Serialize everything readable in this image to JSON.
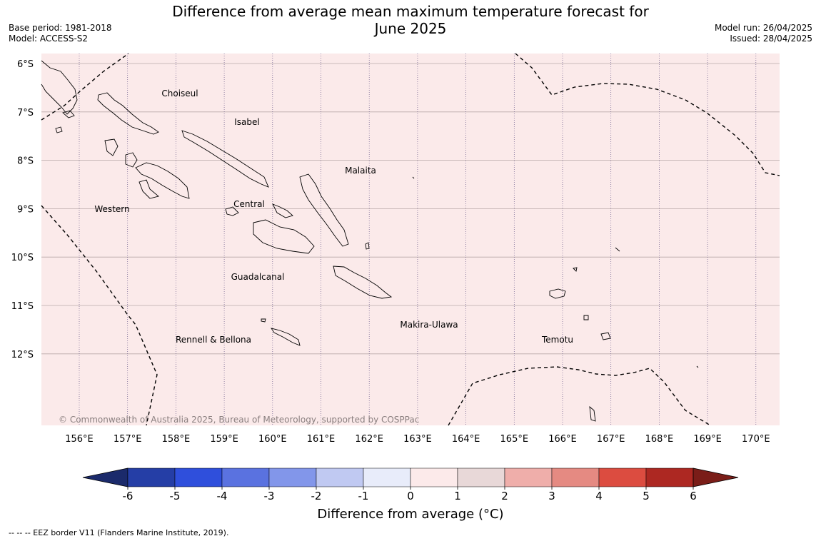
{
  "title_line1": "Difference from average mean maximum temperature forecast for",
  "title_line2": "June 2025",
  "base_period": "Base period: 1981-2018",
  "model": "Model: ACCESS-S2",
  "model_run": "Model run: 26/04/2025",
  "issued": "Issued: 28/04/2025",
  "copyright": "© Commonwealth of Australia 2025, Bureau of Meteorology, supported by COSPPac",
  "footnote": "--  --  -- EEZ border V11 (Flanders Marine Institute, 2019).",
  "colorbar": {
    "title": "Difference from average (°C)",
    "ticks": [
      "-6",
      "-5",
      "-4",
      "-3",
      "-2",
      "-1",
      "0",
      "1",
      "2",
      "3",
      "4",
      "5",
      "6"
    ],
    "colors": [
      "#253ea6",
      "#2f4fdc",
      "#5a72e0",
      "#8296ea",
      "#c0c9f2",
      "#e8ecfa",
      "#fceaea",
      "#e8d8d8",
      "#efaeaa",
      "#e58a82",
      "#dc4c40",
      "#ad2822"
    ],
    "under_color": "#1b2a6b",
    "over_color": "#7a1d18"
  },
  "map": {
    "fill_color": "#fbeaea",
    "lat_labels": [
      "6°S",
      "7°S",
      "8°S",
      "9°S",
      "10°S",
      "11°S",
      "12°S"
    ],
    "lon_labels": [
      "156°E",
      "157°E",
      "158°E",
      "159°E",
      "160°E",
      "161°E",
      "162°E",
      "163°E",
      "164°E",
      "165°E",
      "166°E",
      "167°E",
      "168°E",
      "169°E",
      "170°E"
    ],
    "regions": [
      "Choiseul",
      "Isabel",
      "Malaita",
      "Western",
      "Central",
      "Guadalcanal",
      "Makira-Ulawa",
      "Rennell & Bellona",
      "Temotu"
    ]
  }
}
